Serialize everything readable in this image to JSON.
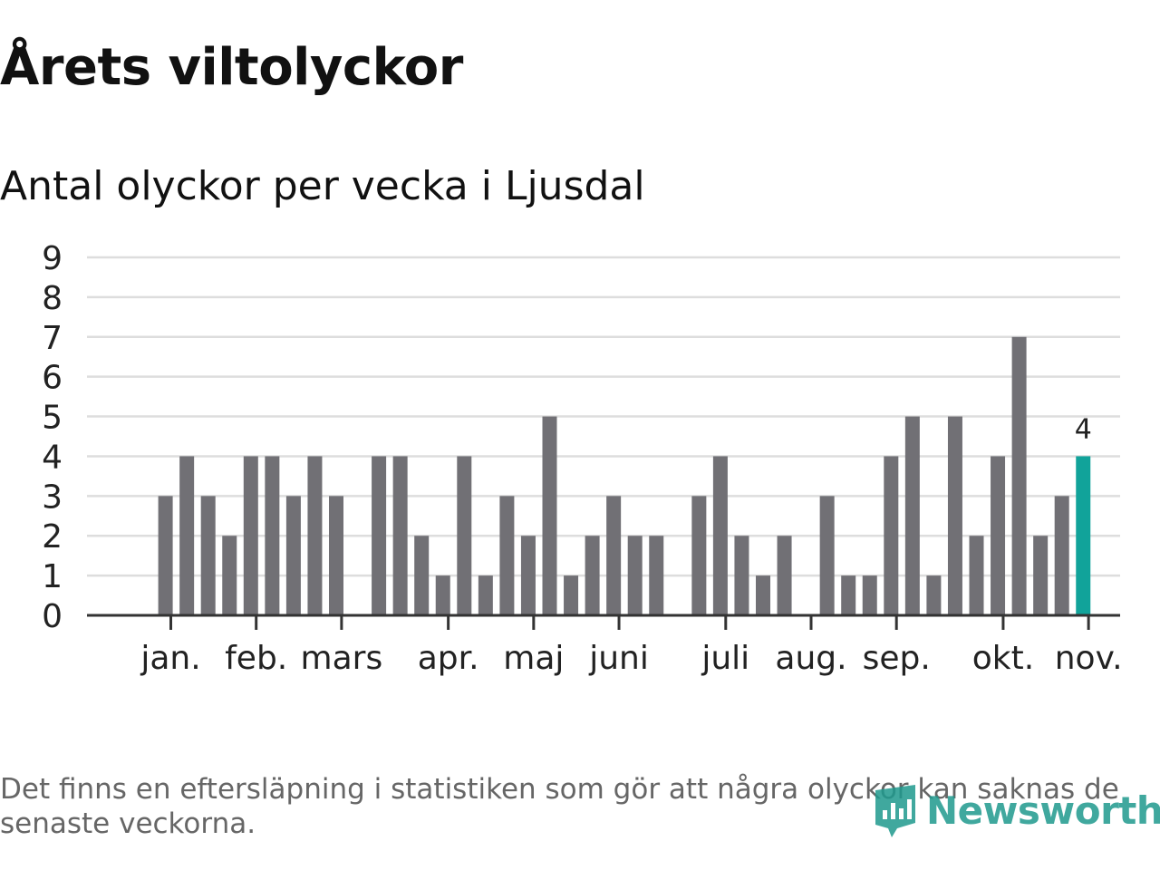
{
  "title": "Årets viltolyckor",
  "subtitle": "Antal olyckor per vecka i Ljusdal",
  "footnote": "Det finns en eftersläpning i statistiken som gör att några olyckor kan saknas de senaste veckorna.",
  "brand": {
    "name": "Newsworthy",
    "icon": "newsworthy-logo-icon",
    "color": "#1f9a8e"
  },
  "colors": {
    "bar": "#717075",
    "highlight": "#11a39a",
    "grid": "#dddddd",
    "axis": "#333333",
    "text": "#222222"
  },
  "chart_data": {
    "type": "bar",
    "title": "Årets viltolyckor",
    "subtitle": "Antal olyckor per vecka i Ljusdal",
    "xlabel": "",
    "ylabel": "",
    "ylim": [
      0,
      9
    ],
    "yticks": [
      0,
      1,
      2,
      3,
      4,
      5,
      6,
      7,
      8,
      9
    ],
    "grid": true,
    "weeks": [
      1,
      2,
      3,
      4,
      5,
      6,
      7,
      8,
      9,
      10,
      11,
      12,
      13,
      14,
      15,
      16,
      17,
      18,
      19,
      20,
      21,
      22,
      23,
      24,
      25,
      26,
      27,
      28,
      29,
      30,
      31,
      32,
      33,
      34,
      35,
      36,
      37,
      38,
      39,
      40,
      41,
      42,
      43,
      44,
      45,
      46,
      47
    ],
    "values": [
      0,
      0,
      3,
      4,
      3,
      2,
      4,
      4,
      3,
      4,
      3,
      0,
      4,
      4,
      2,
      1,
      4,
      1,
      3,
      2,
      5,
      1,
      2,
      3,
      2,
      2,
      0,
      3,
      4,
      2,
      1,
      2,
      0,
      3,
      1,
      1,
      4,
      5,
      1,
      5,
      2,
      4,
      7,
      2,
      3,
      4,
      0
    ],
    "highlight_week": 46,
    "highlight_label": "4",
    "month_ticks": [
      {
        "label": "jan.",
        "week": 3.25
      },
      {
        "label": "feb.",
        "week": 7.25
      },
      {
        "label": "mars",
        "week": 11.25
      },
      {
        "label": "apr.",
        "week": 16.25
      },
      {
        "label": "maj",
        "week": 20.25
      },
      {
        "label": "juni",
        "week": 24.25
      },
      {
        "label": "juli",
        "week": 29.25
      },
      {
        "label": "aug.",
        "week": 33.25
      },
      {
        "label": "sep.",
        "week": 37.25
      },
      {
        "label": "okt.",
        "week": 42.25
      },
      {
        "label": "nov.",
        "week": 46.25
      }
    ]
  }
}
